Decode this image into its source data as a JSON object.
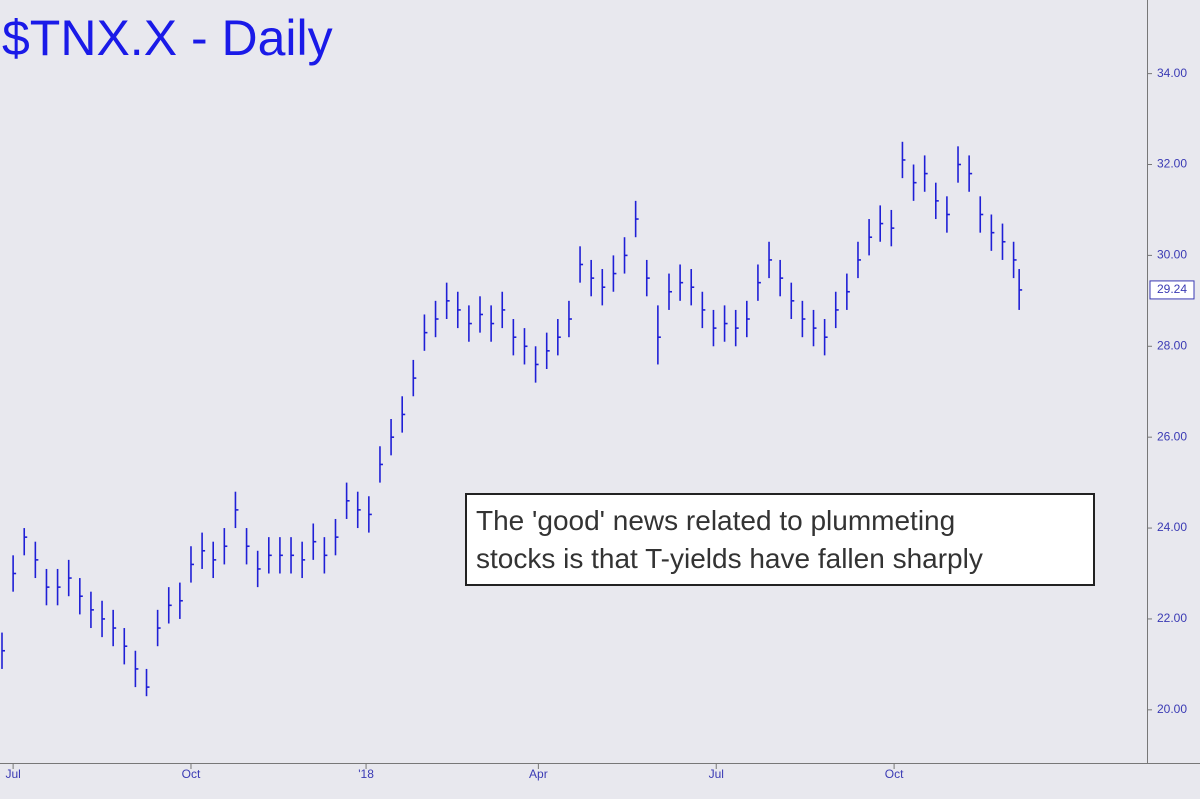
{
  "chart_data": {
    "type": "ohlc",
    "title": "$TNX.X - Daily",
    "color": "#1f1fd6",
    "x": [
      0,
      4,
      8,
      12,
      16,
      20,
      24,
      28,
      32,
      36,
      40,
      44,
      48,
      52,
      56,
      60,
      64,
      68,
      72,
      76,
      80,
      84,
      88,
      92,
      96,
      100,
      104,
      108,
      112,
      116,
      120,
      124,
      128,
      132,
      136,
      140,
      144,
      148,
      152,
      156,
      160,
      164,
      168,
      172,
      176,
      180,
      184,
      188,
      192,
      196,
      200,
      204,
      208,
      212,
      216,
      220,
      224,
      228,
      232,
      236,
      240,
      244,
      248,
      252,
      256,
      260,
      264,
      268,
      272,
      276,
      280,
      284,
      288,
      292,
      296,
      300,
      304,
      308,
      312,
      316,
      320,
      324,
      328,
      332,
      336,
      340,
      344,
      348,
      352,
      356,
      360,
      364,
      366
    ],
    "high": [
      21.7,
      23.4,
      24.0,
      23.7,
      23.1,
      23.1,
      23.3,
      22.9,
      22.6,
      22.4,
      22.2,
      21.8,
      21.3,
      20.9,
      22.2,
      22.7,
      22.8,
      23.6,
      23.9,
      23.7,
      24.0,
      24.8,
      24.0,
      23.5,
      23.8,
      23.8,
      23.8,
      23.7,
      24.1,
      23.8,
      24.2,
      25.0,
      24.8,
      24.7,
      25.8,
      26.4,
      26.9,
      27.7,
      28.7,
      29.0,
      29.4,
      29.2,
      28.9,
      29.1,
      28.9,
      29.2,
      28.6,
      28.4,
      28.0,
      28.3,
      28.6,
      29.0,
      30.2,
      29.9,
      29.7,
      30.0,
      30.4,
      31.2,
      29.9,
      28.9,
      29.6,
      29.8,
      29.7,
      29.2,
      28.8,
      28.9,
      28.8,
      29.0,
      29.8,
      30.3,
      29.9,
      29.4,
      29.0,
      28.8,
      28.6,
      29.2,
      29.6,
      30.3,
      30.8,
      31.1,
      31.0,
      32.5,
      32.0,
      32.2,
      31.6,
      31.3,
      32.4,
      32.2,
      31.3,
      30.9,
      30.7,
      30.3,
      29.7
    ],
    "low": [
      20.9,
      22.6,
      23.4,
      22.9,
      22.3,
      22.3,
      22.5,
      22.1,
      21.8,
      21.6,
      21.4,
      21.0,
      20.5,
      20.3,
      21.4,
      21.9,
      22.0,
      22.8,
      23.1,
      22.9,
      23.2,
      24.0,
      23.2,
      22.7,
      23.0,
      23.0,
      23.0,
      22.9,
      23.3,
      23.0,
      23.4,
      24.2,
      24.0,
      23.9,
      25.0,
      25.6,
      26.1,
      26.9,
      27.9,
      28.2,
      28.6,
      28.4,
      28.1,
      28.3,
      28.1,
      28.4,
      27.8,
      27.6,
      27.2,
      27.5,
      27.8,
      28.2,
      29.4,
      29.1,
      28.9,
      29.2,
      29.6,
      30.4,
      29.1,
      27.6,
      28.8,
      29.0,
      28.9,
      28.4,
      28.0,
      28.1,
      28.0,
      28.2,
      29.0,
      29.5,
      29.1,
      28.6,
      28.2,
      28.0,
      27.8,
      28.4,
      28.8,
      29.5,
      30.0,
      30.3,
      30.2,
      31.7,
      31.2,
      31.4,
      30.8,
      30.5,
      31.6,
      31.4,
      30.5,
      30.1,
      29.9,
      29.5,
      28.8
    ],
    "close": [
      21.3,
      23.0,
      23.8,
      23.3,
      22.7,
      22.7,
      22.9,
      22.5,
      22.2,
      22.0,
      21.8,
      21.4,
      20.9,
      20.5,
      21.8,
      22.3,
      22.4,
      23.2,
      23.5,
      23.3,
      23.6,
      24.4,
      23.6,
      23.1,
      23.4,
      23.4,
      23.4,
      23.3,
      23.7,
      23.4,
      23.8,
      24.6,
      24.4,
      24.3,
      25.4,
      26.0,
      26.5,
      27.3,
      28.3,
      28.6,
      29.0,
      28.8,
      28.5,
      28.7,
      28.5,
      28.8,
      28.2,
      28.0,
      27.6,
      27.9,
      28.2,
      28.6,
      29.8,
      29.5,
      29.3,
      29.6,
      30.0,
      30.8,
      29.5,
      28.2,
      29.2,
      29.4,
      29.3,
      28.8,
      28.4,
      28.5,
      28.4,
      28.6,
      29.4,
      29.9,
      29.5,
      29.0,
      28.6,
      28.4,
      28.2,
      28.8,
      29.2,
      29.9,
      30.4,
      30.7,
      30.6,
      32.1,
      31.6,
      31.8,
      31.2,
      30.9,
      32.0,
      31.8,
      30.9,
      30.5,
      30.3,
      29.9,
      29.24
    ],
    "xlim": [
      0,
      412
    ],
    "xticks": [
      {
        "value": 4,
        "label": "Jul"
      },
      {
        "value": 68,
        "label": "Oct"
      },
      {
        "value": 131,
        "label": "'18"
      },
      {
        "value": 193,
        "label": "Apr"
      },
      {
        "value": 257,
        "label": "Jul"
      },
      {
        "value": 321,
        "label": "Oct"
      }
    ],
    "ylim": [
      18.83,
      35.62
    ],
    "yticks": [
      {
        "value": 20,
        "label": "20.00"
      },
      {
        "value": 22,
        "label": "22.00"
      },
      {
        "value": 24,
        "label": "24.00"
      },
      {
        "value": 26,
        "label": "26.00"
      },
      {
        "value": 28,
        "label": "28.00"
      },
      {
        "value": 30,
        "label": "30.00"
      },
      {
        "value": 32,
        "label": "32.00"
      },
      {
        "value": 34,
        "label": "34.00"
      }
    ],
    "annotation": [
      "The 'good' news related to plummeting",
      "stocks is that T-yields have fallen sharply"
    ]
  }
}
